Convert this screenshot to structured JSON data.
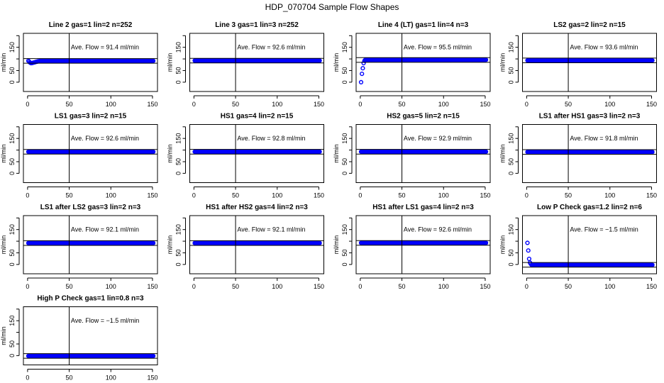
{
  "title": "HDP_070704  Sample Flow Shapes",
  "colors": {
    "points": "#0000ff",
    "lines": "#000000"
  },
  "chart_data": {
    "type": "scatter",
    "layout": "4x4 grid of small multiples, 13 panels",
    "shared": {
      "ylabel": "ml/min",
      "xticks": [
        0,
        50,
        100,
        150
      ],
      "yticks": [
        0,
        50,
        150
      ],
      "xlim": [
        -5,
        156
      ],
      "ylim": [
        -40,
        210
      ],
      "vertical_reference_x": 50,
      "band_halfwidth": 10,
      "points_per_panel": 151,
      "marker": "open-circle"
    },
    "panels": [
      {
        "title": "Line 2 gas=1 lin=2 n=252",
        "annotation": "Ave. Flow =  91.4  ml/min",
        "average": 91.4,
        "initial": [
          92,
          88,
          84,
          82,
          82,
          83,
          84,
          85,
          86,
          87,
          88,
          89,
          90,
          90,
          91
        ],
        "steady": 91.6
      },
      {
        "title": "Line 3 gas=1 lin=3 n=252",
        "annotation": "Ave. Flow =  92.6  ml/min",
        "average": 92.6,
        "initial": [],
        "steady": 92.6
      },
      {
        "title": "Line 4 (LT) gas=1 lin=4 n=3",
        "annotation": "Ave. Flow =  95.5  ml/min",
        "average": 95.5,
        "initial": [
          0,
          36,
          60,
          82,
          92
        ],
        "steady": 96.2
      },
      {
        "title": "LS2 gas=2 lin=2 n=15",
        "annotation": "Ave. Flow =  93.6  ml/min",
        "average": 93.6,
        "initial": [],
        "steady": 93.6
      },
      {
        "title": "LS1 gas=3 lin=2 n=15",
        "annotation": "Ave. Flow =  92.6  ml/min",
        "average": 92.6,
        "initial": [],
        "steady": 92.6
      },
      {
        "title": "HS1 gas=4 lin=2 n=15",
        "annotation": "Ave. Flow =  92.8  ml/min",
        "average": 92.8,
        "initial": [],
        "steady": 92.8
      },
      {
        "title": "HS2 gas=5 lin=2 n=15",
        "annotation": "Ave. Flow =  92.9  ml/min",
        "average": 92.9,
        "initial": [],
        "steady": 92.9
      },
      {
        "title": "LS1 after HS1 gas=3 lin=2 n=3",
        "annotation": "Ave. Flow =  91.8  ml/min",
        "average": 91.8,
        "initial": [],
        "steady": 91.8
      },
      {
        "title": "LS1 after LS2 gas=3 lin=2 n=3",
        "annotation": "Ave. Flow =  92.1  ml/min",
        "average": 92.1,
        "initial": [],
        "steady": 92.1
      },
      {
        "title": "HS1 after HS2 gas=4 lin=2 n=3",
        "annotation": "Ave. Flow =  92.1  ml/min",
        "average": 92.1,
        "initial": [],
        "steady": 92.1
      },
      {
        "title": "HS1 after LS1 gas=4 lin=2 n=3",
        "annotation": "Ave. Flow =  92.6  ml/min",
        "average": 92.6,
        "initial": [],
        "steady": 92.6
      },
      {
        "title": "Low P Check gas=1.2 lin=2 n=6",
        "annotation": "Ave. Flow =  −1.5  ml/min",
        "average": -1.5,
        "initial": [
          93,
          60,
          24,
          8,
          2
        ],
        "steady": -2.2
      },
      {
        "title": "High P Check gas=1 lin=0.8 n=3",
        "annotation": "Ave. Flow =  −1.5  ml/min",
        "average": -1.5,
        "initial": [],
        "steady": -1.5
      }
    ]
  }
}
